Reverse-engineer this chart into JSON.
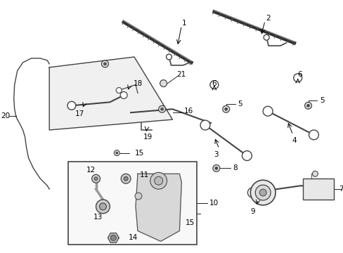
{
  "background_color": "#ffffff",
  "fig_width": 4.89,
  "fig_height": 3.6,
  "dpi": 100,
  "lc": "#000000",
  "fs": 7.5
}
